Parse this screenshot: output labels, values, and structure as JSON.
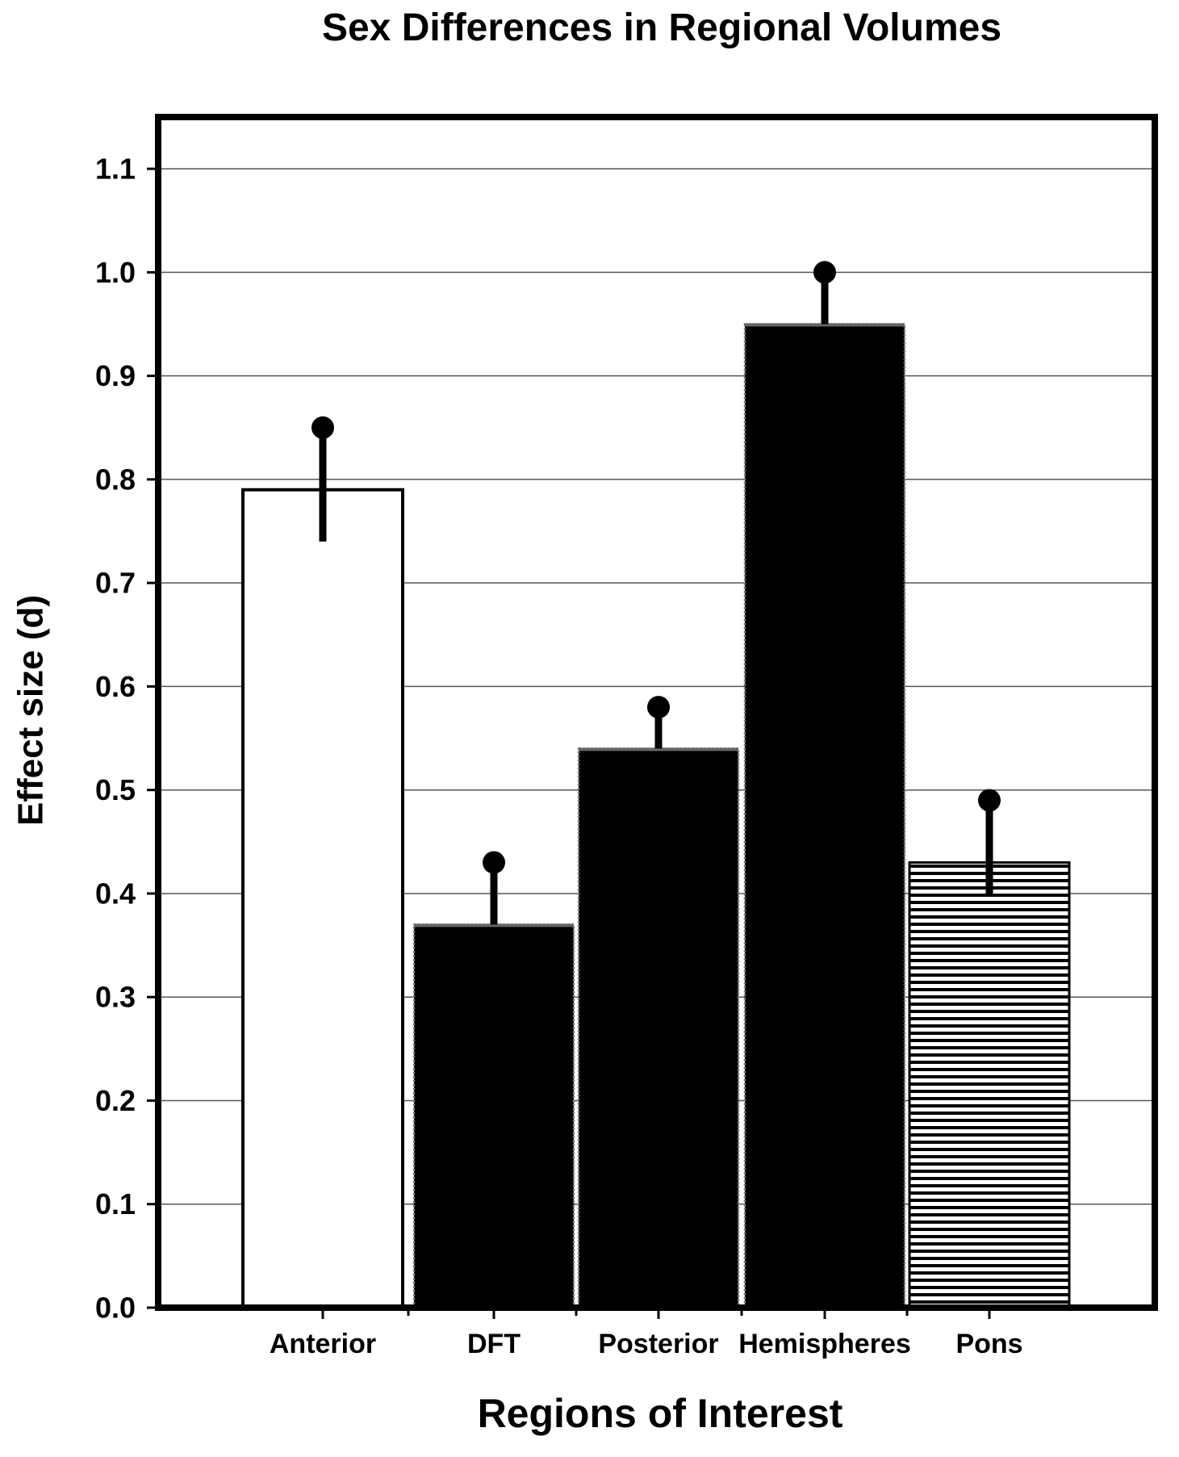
{
  "chart_data": {
    "type": "bar",
    "title": "Sex Differences in Regional Volumes",
    "xlabel": "Regions of Interest",
    "ylabel": "Effect size (d)",
    "categories": [
      "Anterior",
      "DFT",
      "Posterior",
      "Hemispheres",
      "Pons"
    ],
    "values": [
      0.79,
      0.37,
      0.54,
      0.95,
      0.43
    ],
    "error_upper": [
      0.85,
      0.43,
      0.58,
      1.0,
      0.49
    ],
    "error_lower": [
      0.74,
      null,
      null,
      null,
      0.4
    ],
    "bar_fills": [
      "white",
      "black",
      "black",
      "black",
      "horizontal-stripes"
    ],
    "ylim": [
      0,
      1.15
    ],
    "yticks": [
      "0.0",
      "0.1",
      "0.2",
      "0.3",
      "0.4",
      "0.5",
      "0.6",
      "0.7",
      "0.8",
      "0.9",
      "1.0",
      "1.1"
    ],
    "grid": true,
    "legend": "none"
  }
}
